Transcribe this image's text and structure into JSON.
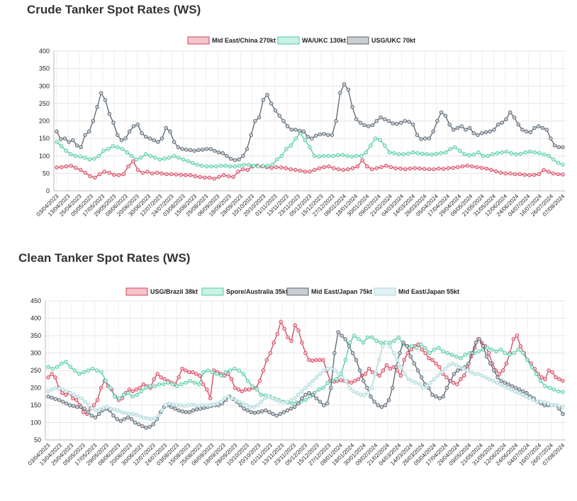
{
  "crude_title": "Crude Tanker Spot Rates (WS)",
  "clean_title": "Clean Tanker Spot Rates (WS)",
  "x_tick_labels": [
    "03/04/2023",
    "13/04/2023",
    "25/04/2023",
    "05/05/2023",
    "17/05/2023",
    "29/05/2023",
    "08/06/2023",
    "20/06/2023",
    "30/06/2023",
    "12/07/2023",
    "24/07/2023",
    "03/08/2023",
    "15/08/2023",
    "25/08/2023",
    "06/09/2023",
    "18/09/2023",
    "28/09/2023",
    "10/10/2023",
    "20/10/2023",
    "01/11/2023",
    "13/11/2023",
    "23/11/2023",
    "05/12/2023",
    "15/12/2023",
    "27/12/2023",
    "08/01/2024",
    "18/01/2024",
    "30/01/2024",
    "09/02/2024",
    "21/02/2024",
    "04/03/2024",
    "14/03/2024",
    "26/03/2024",
    "05/04/2024",
    "17/04/2024",
    "29/04/2024",
    "09/05/2024",
    "21/05/2024",
    "31/05/2024",
    "12/06/2024",
    "24/06/2024",
    "04/07/2024",
    "16/07/2024",
    "26/07/2024",
    "07/08/2024"
  ],
  "chart_data": [
    {
      "type": "line",
      "title": "Crude Tanker Spot Rates (WS)",
      "legend_position": "top",
      "grid": true,
      "ylim": [
        0,
        400
      ],
      "y_ticks": [
        0,
        50,
        100,
        150,
        200,
        250,
        300,
        350,
        400
      ],
      "series": [
        {
          "name": "Mid East/China 270kt",
          "color": "#d6425a",
          "fill": "#f4c4cc",
          "values": [
            67,
            68,
            70,
            72,
            66,
            60,
            52,
            42,
            38,
            48,
            55,
            52,
            46,
            45,
            48,
            70,
            85,
            60,
            52,
            55,
            50,
            52,
            50,
            48,
            48,
            47,
            46,
            45,
            45,
            42,
            40,
            38,
            38,
            35,
            40,
            45,
            42,
            40,
            55,
            62,
            60,
            70,
            72,
            70,
            68,
            66,
            68,
            67,
            65,
            62,
            60,
            58,
            55,
            55,
            60,
            65,
            68,
            70,
            65,
            62,
            60,
            62,
            65,
            70,
            88,
            70,
            62,
            65,
            68,
            72,
            68,
            65,
            64,
            62,
            64,
            65,
            64,
            63,
            62,
            62,
            64,
            63,
            65,
            66,
            68,
            70,
            72,
            70,
            68,
            66,
            64,
            60,
            56,
            52,
            50,
            50,
            48,
            48,
            46,
            45,
            46,
            48,
            60,
            55,
            50,
            48,
            47
          ]
        },
        {
          "name": "WA/UKC 130kt",
          "color": "#4ec9a3",
          "fill": "#c9f2e4",
          "values": [
            140,
            128,
            115,
            105,
            100,
            98,
            95,
            90,
            92,
            100,
            115,
            120,
            128,
            125,
            120,
            110,
            100,
            90,
            95,
            105,
            100,
            95,
            90,
            92,
            95,
            100,
            95,
            90,
            85,
            80,
            75,
            72,
            70,
            70,
            70,
            72,
            72,
            70,
            70,
            72,
            75,
            75,
            72,
            70,
            72,
            72,
            75,
            90,
            100,
            120,
            130,
            150,
            165,
            145,
            125,
            100,
            98,
            100,
            100,
            100,
            102,
            103,
            100,
            98,
            100,
            100,
            110,
            130,
            150,
            145,
            130,
            110,
            108,
            105,
            105,
            107,
            110,
            108,
            106,
            105,
            104,
            106,
            108,
            110,
            120,
            125,
            115,
            105,
            102,
            104,
            110,
            100,
            100,
            105,
            108,
            110,
            112,
            108,
            105,
            106,
            110,
            112,
            110,
            108,
            104,
            100,
            90,
            80,
            75
          ]
        },
        {
          "name": "USG/UKC 70kt",
          "color": "#586470",
          "fill": "#c9ced3",
          "values": [
            170,
            148,
            150,
            140,
            145,
            130,
            125,
            160,
            170,
            200,
            240,
            280,
            260,
            220,
            195,
            160,
            145,
            150,
            170,
            185,
            190,
            165,
            155,
            150,
            145,
            140,
            150,
            180,
            170,
            140,
            125,
            120,
            118,
            117,
            115,
            117,
            118,
            120,
            120,
            115,
            110,
            108,
            100,
            92,
            88,
            90,
            100,
            120,
            160,
            200,
            210,
            260,
            275,
            250,
            230,
            215,
            200,
            185,
            175,
            175,
            172,
            170,
            155,
            150,
            158,
            162,
            163,
            160,
            160,
            200,
            280,
            305,
            290,
            240,
            205,
            195,
            188,
            185,
            188,
            200,
            210,
            205,
            200,
            193,
            192,
            195,
            200,
            198,
            190,
            160,
            148,
            150,
            150,
            170,
            200,
            225,
            215,
            190,
            175,
            180,
            185,
            175,
            180,
            165,
            160,
            165,
            168,
            170,
            175,
            190,
            195,
            205,
            225,
            210,
            190,
            175,
            170,
            168,
            180,
            185,
            180,
            175,
            150,
            130,
            125,
            125
          ]
        }
      ]
    },
    {
      "type": "line",
      "title": "Clean Tanker Spot Rates (WS)",
      "legend_position": "top",
      "grid": true,
      "ylim": [
        50,
        450
      ],
      "y_ticks": [
        50,
        100,
        150,
        200,
        250,
        300,
        350,
        400,
        450
      ],
      "series": [
        {
          "name": "USG/Brazil 38kt",
          "color": "#d6425a",
          "fill": "#f4c4cc",
          "values": [
            230,
            240,
            230,
            200,
            185,
            180,
            185,
            170,
            165,
            150,
            130,
            125,
            140,
            150,
            165,
            200,
            220,
            205,
            195,
            175,
            165,
            170,
            185,
            195,
            190,
            195,
            200,
            210,
            205,
            200,
            225,
            240,
            230,
            225,
            220,
            215,
            210,
            230,
            255,
            250,
            245,
            245,
            240,
            235,
            210,
            195,
            170,
            250,
            245,
            240,
            235,
            240,
            225,
            200,
            195,
            190,
            195,
            195,
            200,
            200,
            220,
            250,
            280,
            300,
            330,
            355,
            390,
            370,
            345,
            335,
            380,
            365,
            330,
            300,
            280,
            278,
            280,
            280,
            280,
            250,
            220,
            218,
            220,
            222,
            220,
            218,
            215,
            220,
            225,
            235,
            240,
            255,
            245,
            240,
            235,
            250,
            265,
            255,
            260,
            250,
            235,
            280,
            300,
            310,
            320,
            325,
            310,
            300,
            285,
            280,
            270,
            260,
            240,
            230,
            220,
            215,
            210,
            225,
            235,
            255,
            290,
            315,
            340,
            330,
            320,
            300,
            270,
            250,
            240,
            250,
            270,
            300,
            340,
            350,
            320,
            300,
            280,
            270,
            255,
            240,
            230,
            225,
            250,
            245,
            230,
            225,
            220
          ]
        },
        {
          "name": "Spore/Australia 35kt",
          "color": "#4ec9a3",
          "fill": "#c9f2e4",
          "values": [
            260,
            255,
            260,
            270,
            275,
            260,
            250,
            240,
            245,
            250,
            255,
            250,
            245,
            220,
            200,
            175,
            170,
            180,
            185,
            175,
            180,
            190,
            200,
            205,
            205,
            210,
            210,
            215,
            210,
            205,
            210,
            215,
            220,
            215,
            210,
            245,
            250,
            245,
            240,
            235,
            245,
            250,
            255,
            250,
            240,
            220,
            205,
            195,
            180,
            178,
            175,
            170,
            165,
            160,
            158,
            155,
            158,
            160,
            165,
            175,
            185,
            195,
            200,
            215,
            220,
            225,
            240,
            280,
            330,
            350,
            340,
            330,
            345,
            345,
            335,
            330,
            330,
            330,
            335,
            345,
            325,
            320,
            320,
            315,
            325,
            315,
            300,
            310,
            315,
            305,
            300,
            295,
            290,
            285,
            295,
            300,
            300,
            305,
            310,
            315,
            310,
            305,
            310,
            300,
            295,
            300,
            310,
            300,
            280,
            260,
            240,
            220,
            205,
            200,
            195,
            190,
            188
          ]
        },
        {
          "name": "Mid East/Japan 75kt",
          "color": "#586470",
          "fill": "#c9ced3",
          "values": [
            175,
            172,
            168,
            165,
            160,
            155,
            150,
            148,
            145,
            145,
            140,
            130,
            120,
            115,
            125,
            135,
            140,
            135,
            120,
            110,
            105,
            110,
            115,
            110,
            100,
            95,
            90,
            85,
            88,
            95,
            110,
            130,
            145,
            150,
            145,
            140,
            135,
            132,
            130,
            130,
            135,
            138,
            140,
            142,
            145,
            148,
            150,
            150,
            155,
            165,
            175,
            168,
            160,
            150,
            140,
            135,
            130,
            128,
            130,
            132,
            135,
            130,
            125,
            120,
            125,
            130,
            135,
            140,
            145,
            155,
            170,
            180,
            185,
            180,
            170,
            160,
            150,
            155,
            200,
            300,
            360,
            350,
            340,
            320,
            300,
            280,
            250,
            220,
            200,
            175,
            160,
            150,
            145,
            150,
            165,
            200,
            260,
            300,
            330,
            320,
            290,
            270,
            250,
            230,
            210,
            200,
            180,
            175,
            170,
            175,
            200,
            220,
            240,
            250,
            255,
            260,
            270,
            300,
            330,
            340,
            320,
            290,
            270,
            250,
            230,
            220,
            215,
            210,
            205,
            200,
            195,
            190,
            185,
            175,
            170,
            160,
            155,
            150,
            150,
            150,
            150,
            140,
            125
          ]
        },
        {
          "name": "Mid East/Japan 55kt",
          "color": "#a9d6d8",
          "fill": "#e3f3f4",
          "values": [
            190,
            195,
            200,
            198,
            195,
            190,
            185,
            180,
            175,
            170,
            160,
            150,
            140,
            135,
            138,
            142,
            145,
            140,
            138,
            135,
            130,
            128,
            125,
            125,
            122,
            118,
            115,
            112,
            110,
            112,
            120,
            135,
            150,
            155,
            152,
            150,
            150,
            148,
            150,
            152,
            150,
            148,
            150,
            150,
            150,
            152,
            155,
            160,
            170,
            175,
            170,
            165,
            160,
            155,
            150,
            145,
            145,
            150,
            160,
            170,
            175,
            170,
            165,
            160,
            158,
            160,
            165,
            170,
            180,
            190,
            200,
            210,
            220,
            230,
            240,
            250,
            255,
            255,
            250,
            240,
            230,
            220,
            200,
            190,
            185,
            180,
            180,
            185,
            200,
            240,
            280,
            320,
            330,
            320,
            300,
            280,
            260,
            240,
            225,
            220,
            215,
            210,
            200,
            205,
            215,
            225,
            235,
            245,
            255,
            265,
            270,
            265,
            260,
            255,
            250,
            245,
            240,
            240,
            235,
            230,
            225,
            220,
            215,
            210,
            205,
            200,
            195,
            190,
            185,
            180,
            175,
            170,
            165,
            160,
            160,
            158,
            155,
            150,
            150,
            148,
            145
          ]
        }
      ]
    }
  ]
}
